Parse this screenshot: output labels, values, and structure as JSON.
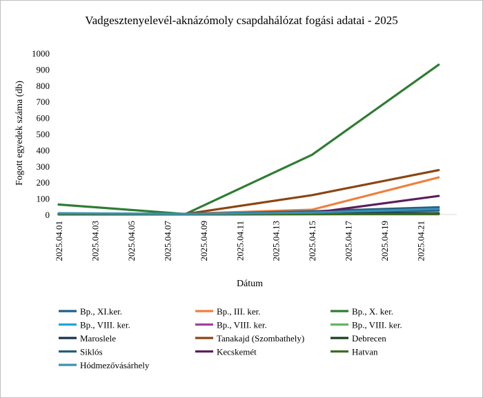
{
  "chart_data": {
    "type": "line",
    "title": "Vadgesztenyelevél-aknázómoly csapdahálózat fogási adatai - 2025",
    "xlabel": "Dátum",
    "ylabel": "Fogott egyedek száma (db)",
    "ylim": [
      0,
      1000
    ],
    "yticks": [
      "0",
      "100",
      "200",
      "300",
      "400",
      "500",
      "600",
      "700",
      "800",
      "900",
      "1000"
    ],
    "xdates": [
      "2025.04.01",
      "2025.04.03",
      "2025.04.05",
      "2025.04.07",
      "2025.04.09",
      "2025.04.11",
      "2025.04.13",
      "2025.04.15",
      "2025.04.17",
      "2025.04.19",
      "2025.04.21"
    ],
    "xrange": [
      "2025.04.01",
      "2025.04.23"
    ],
    "grid": false,
    "legend_position": "bottom",
    "series": [
      {
        "name": "Bp., XI.ker.",
        "color": "#1f5f8b",
        "points": [
          [
            "2025.04.01",
            5
          ],
          [
            "2025.04.08",
            2
          ],
          [
            "2025.04.15",
            8
          ],
          [
            "2025.04.22",
            25
          ]
        ]
      },
      {
        "name": " Bp., III. ker.",
        "color": "#f07f3c",
        "points": [
          [
            "2025.04.01",
            3
          ],
          [
            "2025.04.08",
            5
          ],
          [
            "2025.04.15",
            30
          ],
          [
            "2025.04.22",
            230
          ]
        ]
      },
      {
        "name": "Bp., X. ker.",
        "color": "#2e7d32",
        "points": [
          [
            "2025.04.01",
            62
          ],
          [
            "2025.04.08",
            3
          ],
          [
            "2025.04.15",
            370
          ],
          [
            "2025.04.22",
            928
          ]
        ]
      },
      {
        "name": "Bp., VIII. ker.",
        "color": "#1fa3dc",
        "points": [
          [
            "2025.04.01",
            2
          ],
          [
            "2025.04.08",
            1
          ],
          [
            "2025.04.15",
            3
          ],
          [
            "2025.04.22",
            5
          ]
        ]
      },
      {
        "name": "Bp., VIII. ker.",
        "color": "#a33ea1",
        "points": [
          [
            "2025.04.01",
            1
          ],
          [
            "2025.04.08",
            1
          ],
          [
            "2025.04.15",
            2
          ],
          [
            "2025.04.22",
            4
          ]
        ]
      },
      {
        "name": "Bp., VIII. ker.",
        "color": "#5cb85c",
        "points": [
          [
            "2025.04.01",
            1
          ],
          [
            "2025.04.08",
            2
          ],
          [
            "2025.04.15",
            2
          ],
          [
            "2025.04.22",
            3
          ]
        ]
      },
      {
        "name": "Maroslele",
        "color": "#14304a",
        "points": [
          [
            "2025.04.01",
            2
          ],
          [
            "2025.04.08",
            1
          ],
          [
            "2025.04.15",
            4
          ],
          [
            "2025.04.22",
            8
          ]
        ]
      },
      {
        "name": "Tanakajd (Szombathely)",
        "color": "#8b4513",
        "points": [
          [
            "2025.04.01",
            4
          ],
          [
            "2025.04.08",
            3
          ],
          [
            "2025.04.15",
            120
          ],
          [
            "2025.04.22",
            275
          ]
        ]
      },
      {
        "name": "Debrecen",
        "color": "#173d22",
        "points": [
          [
            "2025.04.01",
            3
          ],
          [
            "2025.04.08",
            2
          ],
          [
            "2025.04.15",
            3
          ],
          [
            "2025.04.22",
            6
          ]
        ]
      },
      {
        "name": "Siklós",
        "color": "#245f7a",
        "points": [
          [
            "2025.04.01",
            2
          ],
          [
            "2025.04.08",
            3
          ],
          [
            "2025.04.15",
            20
          ],
          [
            "2025.04.22",
            45
          ]
        ]
      },
      {
        "name": "Kecskemét",
        "color": "#5b1f5e",
        "points": [
          [
            "2025.04.01",
            1
          ],
          [
            "2025.04.08",
            2
          ],
          [
            "2025.04.15",
            10
          ],
          [
            "2025.04.22",
            115
          ]
        ]
      },
      {
        "name": "Hatvan",
        "color": "#3f6b1f",
        "points": [
          [
            "2025.04.01",
            1
          ],
          [
            "2025.04.08",
            1
          ],
          [
            "2025.04.15",
            2
          ],
          [
            "2025.04.22",
            2
          ]
        ]
      },
      {
        "name": "Hódmezővásárhely",
        "color": "#3a8fb7",
        "points": [
          [
            "2025.04.01",
            8
          ],
          [
            "2025.04.08",
            4
          ],
          [
            "2025.04.15",
            12
          ],
          [
            "2025.04.22",
            35
          ]
        ]
      }
    ]
  }
}
